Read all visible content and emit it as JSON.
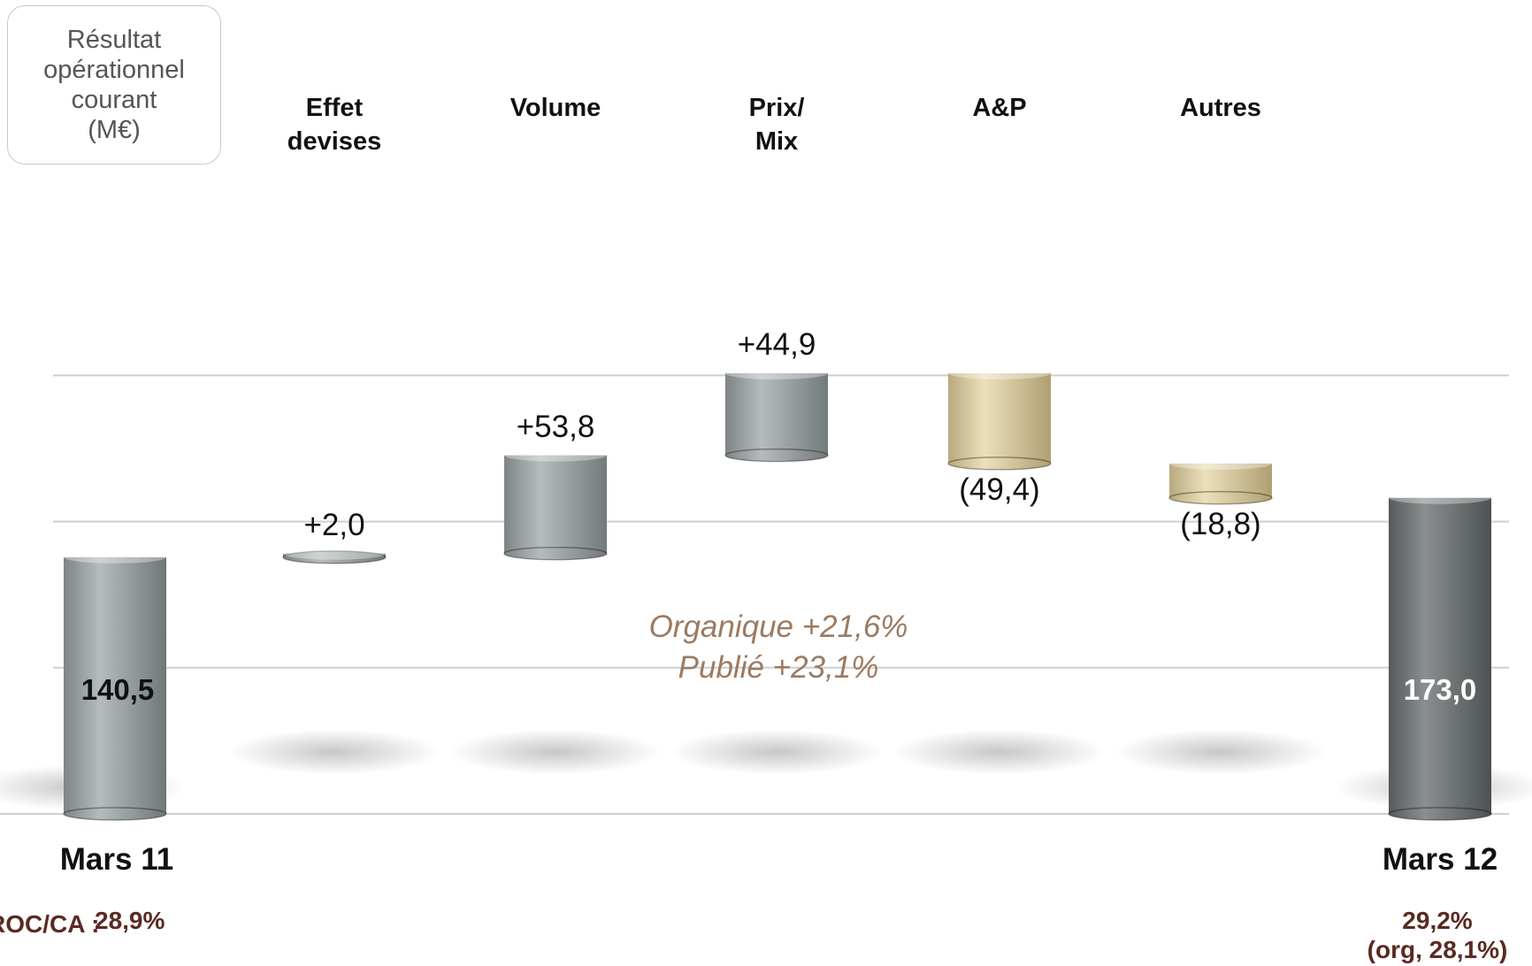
{
  "unit_box": {
    "lines": [
      "Résultat",
      "opérationnel",
      "courant",
      "(M€)"
    ]
  },
  "growth": {
    "organic": "Organique +21,6%",
    "reported": "Publié +23,1%"
  },
  "ratios": {
    "label": "ROC/CA :",
    "start_value": "28,9%",
    "end_value": "29,2%",
    "end_organic": "(org, 28,1%)"
  },
  "colors": {
    "total_start": "#9aa3a4",
    "increase": "#9ea4a6",
    "decrease": "#d8c9a0",
    "total_end": "#6e7273"
  },
  "chart_data": {
    "type": "bar",
    "variant": "waterfall",
    "categories": [
      "Mars 11",
      "Effet\ndevises",
      "Volume",
      "Prix/\nMix",
      "A&P",
      "Autres",
      "Mars 12"
    ],
    "values": [
      140.5,
      2.0,
      53.8,
      44.9,
      -49.4,
      -18.8,
      173.0
    ],
    "kinds": [
      "total",
      "delta",
      "delta",
      "delta",
      "delta",
      "delta",
      "total"
    ],
    "labels": [
      "140,5",
      "+2,0",
      "+53,8",
      "+44,9",
      "(49,4)",
      "(18,8)",
      "173,0"
    ],
    "gridlines": [
      0,
      80,
      160,
      240
    ],
    "grid": true,
    "legend": "none"
  }
}
